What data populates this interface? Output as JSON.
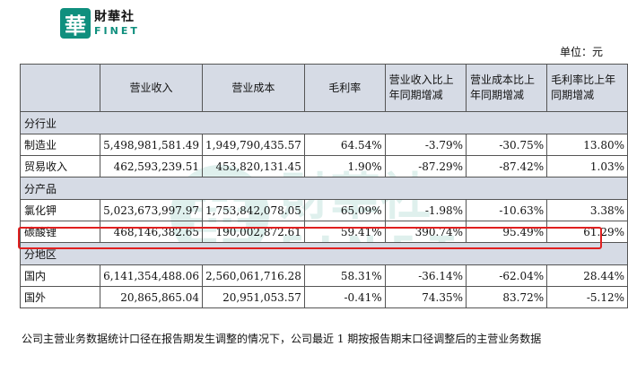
{
  "logo": {
    "mark": "華",
    "cn": "財華社",
    "en": "FINET"
  },
  "watermark": {
    "mark": "華",
    "cn": "財華社",
    "en": "FINET"
  },
  "unit": "单位：元",
  "table": {
    "headers": [
      "",
      "营业收入",
      "营业成本",
      "毛利率",
      "营业收入比上年同期增减",
      "营业成本比上年同期增减",
      "毛利率比上年同期增减"
    ],
    "sections": [
      {
        "title": "分行业",
        "rows": [
          {
            "label": "制造业",
            "values": [
              "5,498,981,581.49",
              "1,949,790,435.57",
              "64.54%",
              "-3.79%",
              "-30.75%",
              "13.80%"
            ]
          },
          {
            "label": "贸易收入",
            "values": [
              "462,593,239.51",
              "453,820,131.45",
              "1.90%",
              "-87.29%",
              "-87.42%",
              "1.03%"
            ]
          }
        ]
      },
      {
        "title": "分产品",
        "rows": [
          {
            "label": "氯化钾",
            "values": [
              "5,023,673,997.97",
              "1,753,842,078.05",
              "65.09%",
              "-1.98%",
              "-10.63%",
              "3.38%"
            ]
          },
          {
            "label": "碳酸锂",
            "values": [
              "468,146,382.65",
              "190,002,872.61",
              "59.41%",
              "390.74%",
              "95.49%",
              "61.29%"
            ]
          }
        ]
      },
      {
        "title": "分地区",
        "rows": [
          {
            "label": "国内",
            "values": [
              "6,141,354,488.06",
              "2,560,061,716.28",
              "58.31%",
              "-36.14%",
              "-62.04%",
              "28.44%"
            ]
          },
          {
            "label": "国外",
            "values": [
              "20,865,865.04",
              "20,951,053.57",
              "-0.41%",
              "74.35%",
              "83.72%",
              "-5.12%"
            ]
          }
        ]
      }
    ]
  },
  "footnote": "公司主营业务数据统计口径在报告期发生调整的情况下，公司最近 1 期按报告期末口径调整后的主营业务数据"
}
